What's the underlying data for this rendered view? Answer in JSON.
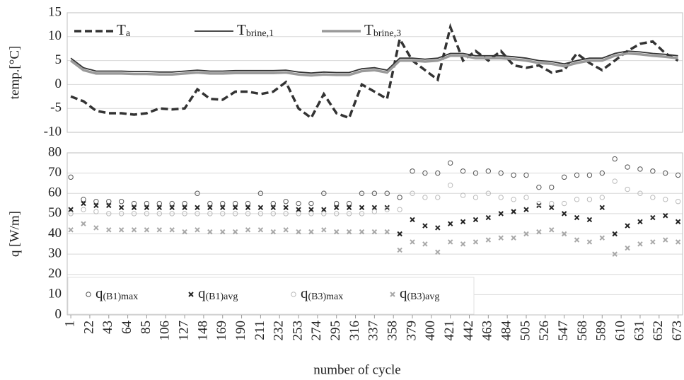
{
  "chart_data": [
    {
      "type": "line",
      "ylabel": "temp.[°C]",
      "xlim": [
        -3,
        678
      ],
      "ylim": [
        -10,
        15
      ],
      "yticks": [
        -10,
        -5,
        0,
        5,
        10,
        15
      ],
      "grid": true,
      "legend": "top-left",
      "x": [
        1,
        15,
        29,
        43,
        57,
        71,
        85,
        99,
        113,
        127,
        141,
        155,
        169,
        183,
        197,
        211,
        225,
        239,
        253,
        267,
        281,
        295,
        309,
        323,
        337,
        351,
        365,
        379,
        393,
        407,
        421,
        435,
        449,
        463,
        477,
        491,
        505,
        519,
        533,
        547,
        561,
        575,
        589,
        603,
        617,
        631,
        645,
        659,
        673
      ],
      "series": [
        {
          "name": "Ta",
          "color": "#333333",
          "dash": true,
          "values": [
            -2.5,
            -3.5,
            -5.5,
            -6,
            -6,
            -6.3,
            -6,
            -5,
            -5.2,
            -5,
            -1,
            -3,
            -3.2,
            -1.5,
            -1.5,
            -2,
            -1.5,
            0.5,
            -5,
            -7,
            -2,
            -6,
            -7,
            0,
            -1.5,
            -3,
            9.5,
            5,
            3,
            1,
            12,
            5,
            7,
            5,
            7,
            4,
            3.5,
            4,
            2.5,
            3,
            6.5,
            4.5,
            3,
            5,
            7,
            8.5,
            9,
            6.5,
            5
          ]
        },
        {
          "name": "Tbrine,1",
          "color": "#333333",
          "dash": false,
          "values": [
            5.5,
            3.5,
            2.8,
            2.8,
            2.8,
            2.7,
            2.7,
            2.6,
            2.6,
            2.8,
            3,
            2.8,
            2.8,
            2.9,
            2.9,
            2.9,
            2.9,
            3,
            2.6,
            2.4,
            2.6,
            2.5,
            2.5,
            3.3,
            3.5,
            3,
            5.5,
            5.5,
            5.3,
            5.5,
            6.5,
            6.5,
            6,
            6,
            6,
            5.8,
            5.5,
            5,
            4.8,
            4.3,
            5,
            5.5,
            5.5,
            6.5,
            7,
            6.8,
            6.5,
            6.3,
            6
          ]
        },
        {
          "name": "Tbrine,3",
          "color": "#9a9a9a",
          "dash": false,
          "values": [
            5,
            3,
            2.3,
            2.3,
            2.3,
            2.2,
            2.2,
            2.1,
            2.1,
            2.3,
            2.5,
            2.3,
            2.3,
            2.4,
            2.4,
            2.4,
            2.4,
            2.5,
            2.1,
            1.9,
            2.1,
            2,
            2,
            2.8,
            3,
            2.5,
            5,
            5,
            4.8,
            5,
            6,
            6,
            5.5,
            5.5,
            5.5,
            5.3,
            5,
            4.5,
            4.3,
            3.8,
            4.5,
            5,
            5,
            6,
            6.5,
            6.3,
            6,
            5.8,
            5.5
          ]
        }
      ]
    },
    {
      "type": "scatter",
      "xlabel": "number of cycle",
      "ylabel": "q [W/m]",
      "xlim": [
        -3,
        678
      ],
      "ylim": [
        0,
        80
      ],
      "yticks": [
        0,
        10,
        20,
        30,
        40,
        50,
        60,
        70,
        80
      ],
      "grid": true,
      "legend": "bottom-left",
      "xticks": [
        1,
        22,
        43,
        64,
        85,
        106,
        127,
        148,
        169,
        190,
        211,
        232,
        253,
        274,
        295,
        316,
        337,
        358,
        379,
        400,
        421,
        442,
        463,
        484,
        505,
        526,
        547,
        568,
        589,
        610,
        631,
        652,
        673
      ],
      "x": [
        1,
        15,
        29,
        43,
        57,
        71,
        85,
        99,
        113,
        127,
        141,
        155,
        169,
        183,
        197,
        211,
        225,
        239,
        253,
        267,
        281,
        295,
        309,
        323,
        337,
        351,
        365,
        379,
        393,
        407,
        421,
        435,
        449,
        463,
        477,
        491,
        505,
        519,
        533,
        547,
        561,
        575,
        589,
        603,
        617,
        631,
        645,
        659,
        673
      ],
      "series": [
        {
          "name": "q(B1)max",
          "color": "#555555",
          "marker": "circle",
          "values": [
            68,
            57,
            56,
            56,
            56,
            55,
            55,
            55,
            55,
            55,
            60,
            55,
            55,
            55,
            55,
            60,
            55,
            56,
            55,
            55,
            60,
            55,
            55,
            60,
            60,
            60,
            58,
            71,
            70,
            70,
            75,
            71,
            70,
            71,
            70,
            69,
            69,
            63,
            63,
            68,
            69,
            69,
            70,
            77,
            73,
            72,
            71,
            70,
            69
          ]
        },
        {
          "name": "q(B1)avg",
          "color": "#222222",
          "marker": "x",
          "values": [
            52,
            55,
            54,
            54,
            53,
            53,
            53,
            53,
            53,
            53,
            53,
            53,
            53,
            53,
            53,
            53,
            53,
            53,
            52,
            52,
            52,
            53,
            53,
            53,
            53,
            53,
            40,
            47,
            44,
            43,
            45,
            46,
            47,
            48,
            50,
            51,
            52,
            54,
            53,
            50,
            48,
            47,
            53,
            40,
            44,
            46,
            48,
            49,
            46
          ]
        },
        {
          "name": "q(B3)max",
          "color": "#bbbbbb",
          "marker": "circle",
          "values": [
            50,
            52,
            51,
            50,
            50,
            50,
            50,
            50,
            50,
            50,
            50,
            50,
            50,
            50,
            50,
            50,
            50,
            50,
            50,
            50,
            50,
            50,
            50,
            50,
            51,
            52,
            52,
            60,
            58,
            58,
            64,
            59,
            58,
            60,
            58,
            57,
            58,
            55,
            55,
            55,
            57,
            57,
            58,
            66,
            62,
            60,
            58,
            57,
            56
          ]
        },
        {
          "name": "q(B3)avg",
          "color": "#a8a8a8",
          "marker": "x",
          "values": [
            42,
            45,
            43,
            42,
            42,
            42,
            42,
            42,
            42,
            41,
            42,
            41,
            41,
            41,
            42,
            42,
            41,
            42,
            41,
            41,
            42,
            41,
            41,
            41,
            41,
            41,
            32,
            36,
            35,
            31,
            36,
            35,
            36,
            37,
            38,
            38,
            40,
            41,
            42,
            40,
            37,
            36,
            38,
            30,
            33,
            35,
            36,
            37,
            36
          ]
        }
      ]
    }
  ]
}
